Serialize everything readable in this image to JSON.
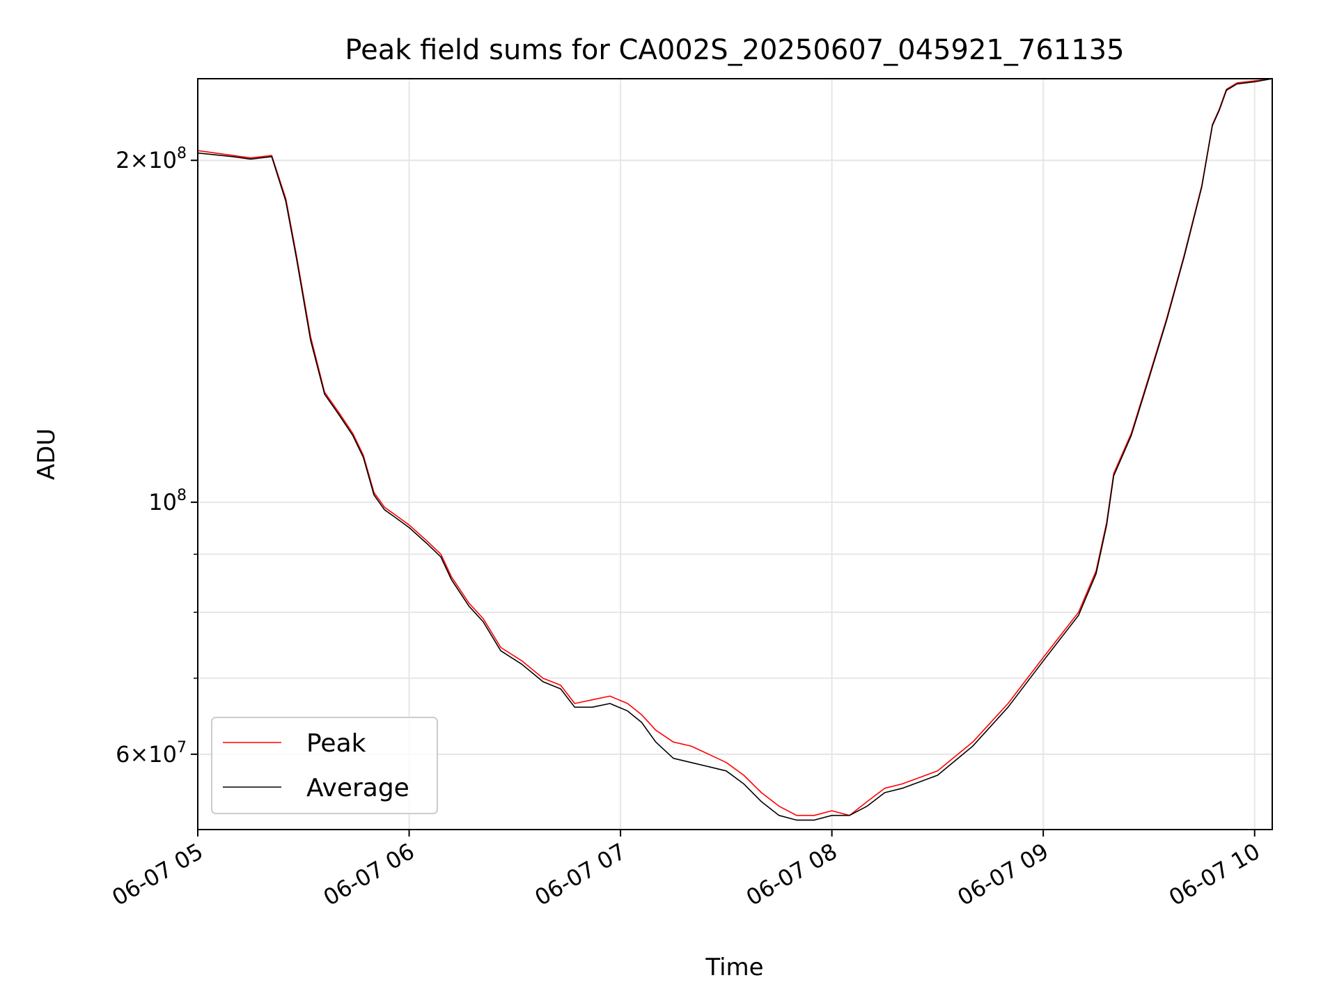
{
  "chart_data": {
    "type": "line",
    "title": "Peak field sums for CA002S_20250607_045921_761135",
    "xlabel": "Time",
    "ylabel": "ADU",
    "x_scale": "time",
    "y_scale": "log",
    "xlim": [
      "2025-06-07 05:00",
      "2025-06-07 10:05"
    ],
    "ylim": [
      51500000,
      236000000
    ],
    "x_ticks": [
      {
        "value": "2025-06-07 05:00",
        "label": "06-07 05"
      },
      {
        "value": "2025-06-07 06:00",
        "label": "06-07 06"
      },
      {
        "value": "2025-06-07 07:00",
        "label": "06-07 07"
      },
      {
        "value": "2025-06-07 08:00",
        "label": "06-07 08"
      },
      {
        "value": "2025-06-07 09:00",
        "label": "06-07 09"
      },
      {
        "value": "2025-06-07 10:00",
        "label": "06-07 10"
      }
    ],
    "y_major_ticks": [
      {
        "value": 60000000,
        "mantissa": "6",
        "exponent": "7"
      },
      {
        "value": 100000000,
        "mantissa": "",
        "exponent": "8"
      },
      {
        "value": 200000000,
        "mantissa": "2",
        "exponent": "8"
      }
    ],
    "y_minor_ticks": [
      60000000,
      70000000,
      80000000,
      90000000,
      200000000
    ],
    "tick_base": "10",
    "times_sign": "×",
    "grid": true,
    "legend_position": "lower-left",
    "series": [
      {
        "name": "Peak",
        "color": "#ff0000",
        "x": [
          "2025-06-07 05:00",
          "2025-06-07 05:10",
          "2025-06-07 05:15",
          "2025-06-07 05:21",
          "2025-06-07 05:25",
          "2025-06-07 05:28",
          "2025-06-07 05:32",
          "2025-06-07 05:36",
          "2025-06-07 05:40",
          "2025-06-07 05:44",
          "2025-06-07 05:47",
          "2025-06-07 05:50",
          "2025-06-07 05:53",
          "2025-06-07 05:56",
          "2025-06-07 06:00",
          "2025-06-07 06:05",
          "2025-06-07 06:09",
          "2025-06-07 06:12",
          "2025-06-07 06:17",
          "2025-06-07 06:21",
          "2025-06-07 06:26",
          "2025-06-07 06:32",
          "2025-06-07 06:38",
          "2025-06-07 06:43",
          "2025-06-07 06:47",
          "2025-06-07 06:52",
          "2025-06-07 06:57",
          "2025-06-07 07:02",
          "2025-06-07 07:06",
          "2025-06-07 07:10",
          "2025-06-07 07:15",
          "2025-06-07 07:20",
          "2025-06-07 07:25",
          "2025-06-07 07:30",
          "2025-06-07 07:35",
          "2025-06-07 07:40",
          "2025-06-07 07:45",
          "2025-06-07 07:50",
          "2025-06-07 07:55",
          "2025-06-07 08:00",
          "2025-06-07 08:05",
          "2025-06-07 08:10",
          "2025-06-07 08:15",
          "2025-06-07 08:20",
          "2025-06-07 08:30",
          "2025-06-07 08:40",
          "2025-06-07 08:50",
          "2025-06-07 09:00",
          "2025-06-07 09:10",
          "2025-06-07 09:15",
          "2025-06-07 09:18",
          "2025-06-07 09:20",
          "2025-06-07 09:25",
          "2025-06-07 09:30",
          "2025-06-07 09:35",
          "2025-06-07 09:40",
          "2025-06-07 09:45",
          "2025-06-07 09:48",
          "2025-06-07 09:50",
          "2025-06-07 09:52",
          "2025-06-07 09:55",
          "2025-06-07 10:00",
          "2025-06-07 10:05"
        ],
        "y": [
          204000000,
          202000000,
          201000000,
          202000000,
          185000000,
          165000000,
          140000000,
          125000000,
          120000000,
          115000000,
          110000000,
          102000000,
          99000000,
          97500000,
          95500000,
          92500000,
          90000000,
          86000000,
          81500000,
          79000000,
          74500000,
          72500000,
          70000000,
          69000000,
          66500000,
          67000000,
          67500000,
          66500000,
          65000000,
          63000000,
          61500000,
          61000000,
          60000000,
          59000000,
          57500000,
          55500000,
          54000000,
          53000000,
          53000000,
          53500000,
          53000000,
          54500000,
          56000000,
          56500000,
          58000000,
          61500000,
          66500000,
          73000000,
          80000000,
          87000000,
          96000000,
          106000000,
          115000000,
          129000000,
          145000000,
          165000000,
          190000000,
          215000000,
          222000000,
          231000000,
          234000000,
          235000000,
          236000000
        ]
      },
      {
        "name": "Average",
        "color": "#000000",
        "x": [
          "2025-06-07 05:00",
          "2025-06-07 05:10",
          "2025-06-07 05:15",
          "2025-06-07 05:21",
          "2025-06-07 05:25",
          "2025-06-07 05:28",
          "2025-06-07 05:32",
          "2025-06-07 05:36",
          "2025-06-07 05:40",
          "2025-06-07 05:44",
          "2025-06-07 05:47",
          "2025-06-07 05:50",
          "2025-06-07 05:53",
          "2025-06-07 05:56",
          "2025-06-07 06:00",
          "2025-06-07 06:05",
          "2025-06-07 06:09",
          "2025-06-07 06:12",
          "2025-06-07 06:17",
          "2025-06-07 06:21",
          "2025-06-07 06:26",
          "2025-06-07 06:32",
          "2025-06-07 06:38",
          "2025-06-07 06:43",
          "2025-06-07 06:47",
          "2025-06-07 06:52",
          "2025-06-07 06:57",
          "2025-06-07 07:02",
          "2025-06-07 07:06",
          "2025-06-07 07:10",
          "2025-06-07 07:15",
          "2025-06-07 07:20",
          "2025-06-07 07:25",
          "2025-06-07 07:30",
          "2025-06-07 07:35",
          "2025-06-07 07:40",
          "2025-06-07 07:45",
          "2025-06-07 07:50",
          "2025-06-07 07:55",
          "2025-06-07 08:00",
          "2025-06-07 08:05",
          "2025-06-07 08:10",
          "2025-06-07 08:15",
          "2025-06-07 08:20",
          "2025-06-07 08:30",
          "2025-06-07 08:40",
          "2025-06-07 08:50",
          "2025-06-07 09:00",
          "2025-06-07 09:10",
          "2025-06-07 09:15",
          "2025-06-07 09:18",
          "2025-06-07 09:20",
          "2025-06-07 09:25",
          "2025-06-07 09:30",
          "2025-06-07 09:35",
          "2025-06-07 09:40",
          "2025-06-07 09:45",
          "2025-06-07 09:48",
          "2025-06-07 09:50",
          "2025-06-07 09:52",
          "2025-06-07 09:55",
          "2025-06-07 10:00",
          "2025-06-07 10:05"
        ],
        "y": [
          203000000,
          201500000,
          200500000,
          201500000,
          184000000,
          164000000,
          139000000,
          124500000,
          119500000,
          114500000,
          109500000,
          101500000,
          98500000,
          97000000,
          95000000,
          92000000,
          89500000,
          85500000,
          81000000,
          78500000,
          74000000,
          72000000,
          69500000,
          68500000,
          66000000,
          66000000,
          66500000,
          65500000,
          64000000,
          61500000,
          59500000,
          59000000,
          58500000,
          58000000,
          56500000,
          54500000,
          53000000,
          52500000,
          52500000,
          53000000,
          53000000,
          54000000,
          55500000,
          56000000,
          57500000,
          61000000,
          66000000,
          72500000,
          79500000,
          86500000,
          95500000,
          105500000,
          114500000,
          128500000,
          144500000,
          164500000,
          189500000,
          214500000,
          221500000,
          230500000,
          233500000,
          234500000,
          236000000
        ]
      }
    ]
  }
}
